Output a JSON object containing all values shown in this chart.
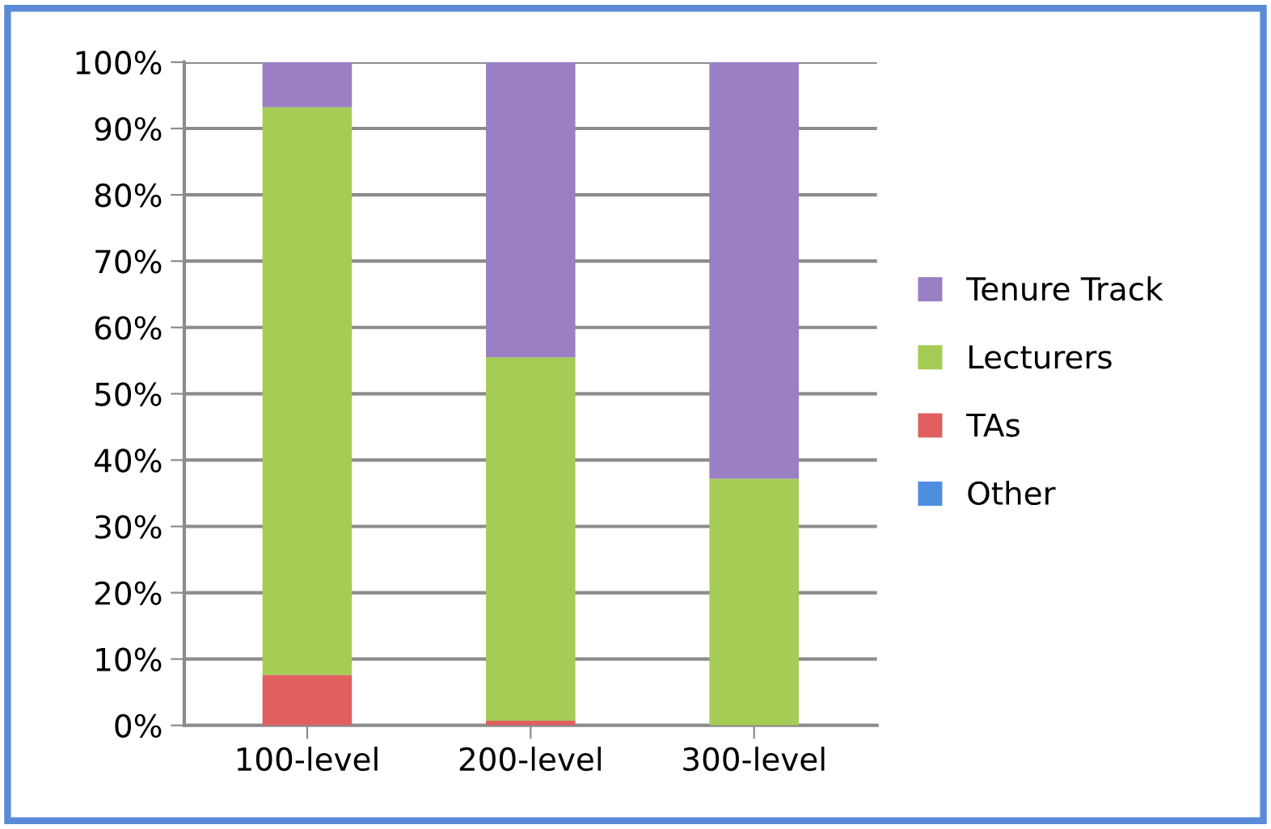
{
  "chart_data": {
    "type": "bar",
    "stacked": true,
    "categories": [
      "100-level",
      "200-level",
      "300-level"
    ],
    "series": [
      {
        "name": "Other",
        "color": "#4f8fe0",
        "values": [
          0,
          0,
          0
        ]
      },
      {
        "name": "TAs",
        "color": "#e06060",
        "values": [
          7.6,
          0.7,
          0
        ]
      },
      {
        "name": "Lecturers",
        "color": "#a5cc55",
        "values": [
          85.6,
          54.8,
          37.2
        ]
      },
      {
        "name": "Tenure Track",
        "color": "#9a7fc4",
        "values": [
          6.8,
          44.5,
          62.8
        ]
      }
    ],
    "ylim": [
      0,
      100
    ],
    "yticks": [
      {
        "value": 0,
        "label": "0%"
      },
      {
        "value": 10,
        "label": "10%"
      },
      {
        "value": 20,
        "label": "20%"
      },
      {
        "value": 30,
        "label": "30%"
      },
      {
        "value": 40,
        "label": "40%"
      },
      {
        "value": 50,
        "label": "50%"
      },
      {
        "value": 60,
        "label": "60%"
      },
      {
        "value": 70,
        "label": "70%"
      },
      {
        "value": 80,
        "label": "80%"
      },
      {
        "value": 90,
        "label": "90%"
      },
      {
        "value": 100,
        "label": "100%"
      }
    ],
    "grid": "y",
    "legend": "right"
  }
}
